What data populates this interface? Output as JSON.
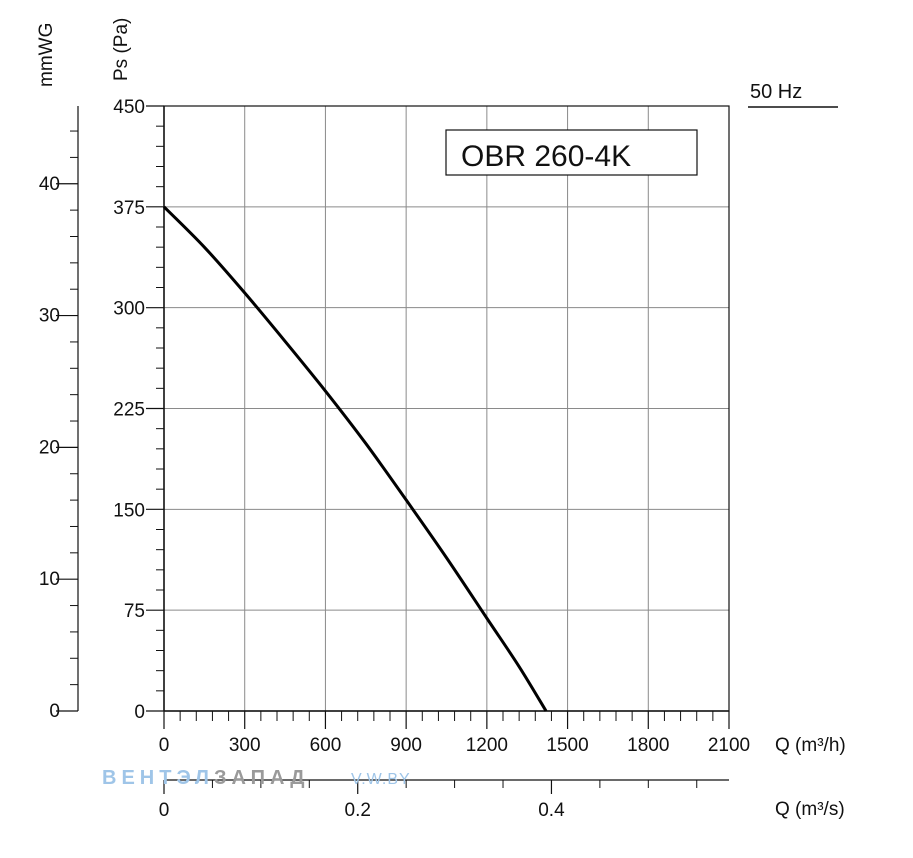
{
  "chart_data": {
    "type": "line",
    "model_label": "OBR 260-4K",
    "frequency_label": "50 Hz",
    "x": {
      "label": "Q (m³/h)",
      "range": [
        0,
        2100
      ],
      "ticks": [
        "0",
        "300",
        "600",
        "900",
        "1200",
        "1500",
        "1800",
        "2100"
      ]
    },
    "x2": {
      "label": "Q (m³/s)",
      "range": [
        0,
        0.5833
      ],
      "ticks": [
        "0",
        "0.2",
        "0.4"
      ],
      "tick_values": [
        0,
        0.2,
        0.4
      ]
    },
    "y": {
      "label": "Ps (Pa)",
      "range": [
        0,
        450
      ],
      "ticks": [
        "0",
        "75",
        "150",
        "225",
        "300",
        "375",
        "450"
      ]
    },
    "y2": {
      "label": "mmWG",
      "range": [
        0,
        45.9
      ],
      "ticks": [
        "0",
        "10",
        "20",
        "30",
        "40"
      ],
      "tick_values": [
        0,
        10,
        20,
        30,
        40
      ]
    },
    "grid": true,
    "series": [
      {
        "x": [
          0,
          150,
          300,
          450,
          600,
          750,
          900,
          1050,
          1200,
          1320,
          1420
        ],
        "y": [
          375,
          345,
          311,
          275,
          238,
          199,
          157,
          114,
          69,
          33,
          0
        ]
      }
    ],
    "watermark": {
      "part1": "ВЕНТЭЛ",
      "part2": "ЗАПАД",
      "part3": "V.W.BY",
      "color1": "#9fc5e8",
      "color2": "#9a9a9a"
    }
  }
}
